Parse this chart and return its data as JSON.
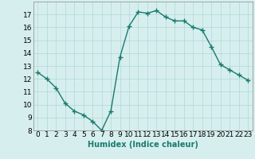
{
  "x": [
    0,
    1,
    2,
    3,
    4,
    5,
    6,
    7,
    8,
    9,
    10,
    11,
    12,
    13,
    14,
    15,
    16,
    17,
    18,
    19,
    20,
    21,
    22,
    23
  ],
  "y": [
    12.5,
    12.0,
    11.3,
    10.1,
    9.5,
    9.2,
    8.7,
    8.0,
    9.5,
    13.7,
    16.1,
    17.2,
    17.1,
    17.3,
    16.8,
    16.5,
    16.5,
    16.0,
    15.8,
    14.5,
    13.1,
    12.7,
    12.3,
    11.9
  ],
  "line_color": "#1a7a6e",
  "marker": "+",
  "marker_size": 4,
  "marker_linewidth": 1.0,
  "bg_color": "#d6efee",
  "grid_color": "#b0d8d5",
  "xlabel": "Humidex (Indice chaleur)",
  "xlim": [
    -0.5,
    23.5
  ],
  "ylim": [
    8,
    18
  ],
  "yticks": [
    8,
    9,
    10,
    11,
    12,
    13,
    14,
    15,
    16,
    17
  ],
  "xticks": [
    0,
    1,
    2,
    3,
    4,
    5,
    6,
    7,
    8,
    9,
    10,
    11,
    12,
    13,
    14,
    15,
    16,
    17,
    18,
    19,
    20,
    21,
    22,
    23
  ],
  "xlabel_fontsize": 7,
  "tick_fontsize": 6.5,
  "line_width": 1.0
}
